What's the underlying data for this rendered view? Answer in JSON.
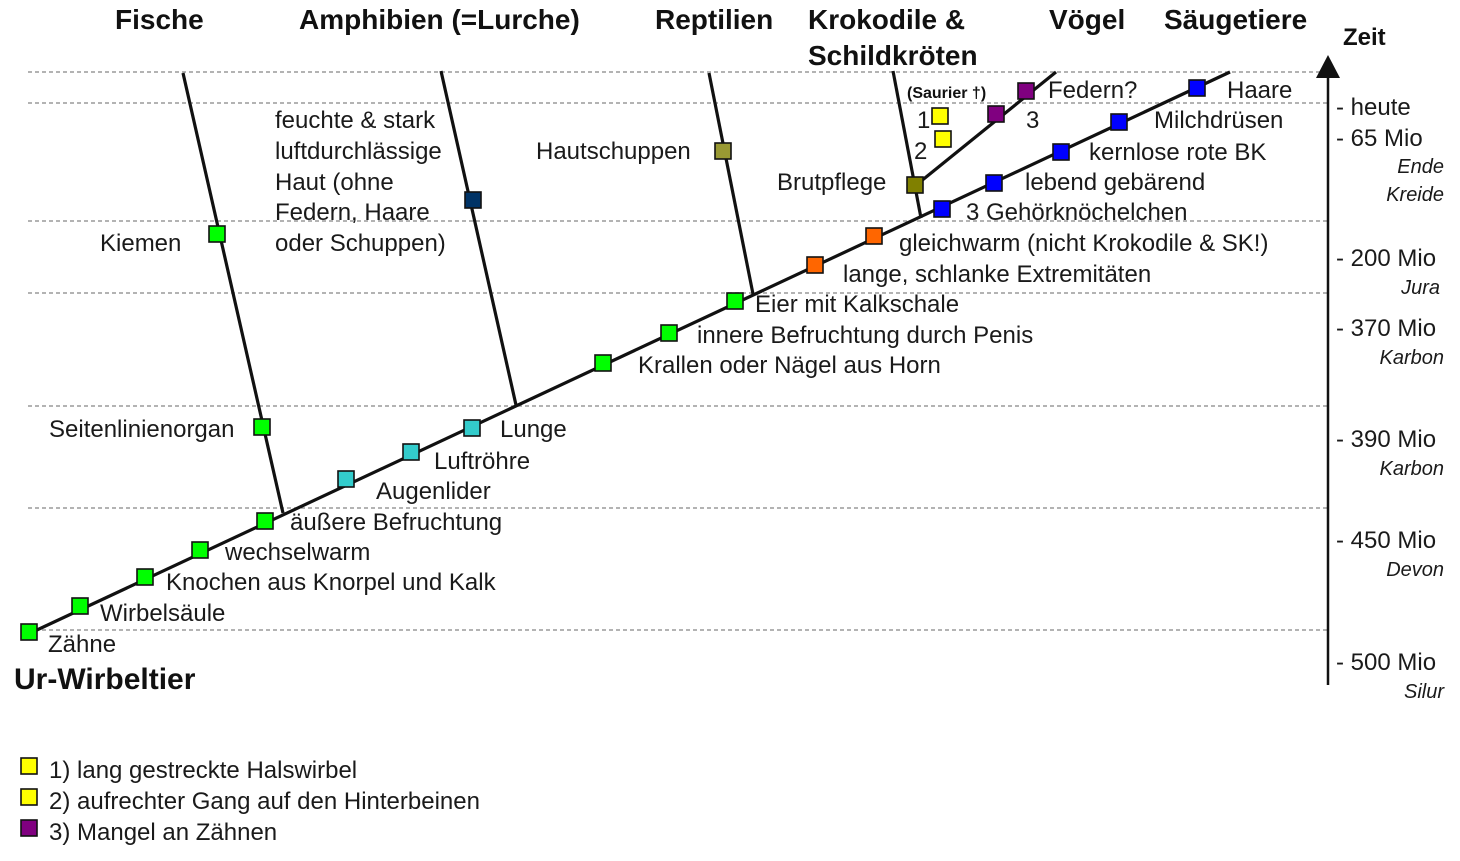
{
  "groups": {
    "fische": "Fische",
    "amphibien": "Amphibien (=Lurche)",
    "reptilien": "Reptilien",
    "krokodile_line1": "Krokodile &",
    "krokodile_line2": "Schildkröten",
    "voegel": "Vögel",
    "saeugetiere": "Säugetiere"
  },
  "root_label": "Ur-Wirbeltier",
  "time_axis": {
    "title": "Zeit",
    "entries": [
      {
        "label": "- heute",
        "period": ""
      },
      {
        "label": "- 65 Mio",
        "period": "Ende"
      },
      {
        "label": "",
        "period": "Kreide"
      },
      {
        "label": "- 200 Mio",
        "period": "Jura"
      },
      {
        "label": "- 370 Mio",
        "period": "Karbon"
      },
      {
        "label": "- 390 Mio",
        "period": "Karbon"
      },
      {
        "label": "- 450 Mio",
        "period": "Devon"
      },
      {
        "label": "- 500 Mio",
        "period": "Silur"
      }
    ]
  },
  "traits": {
    "zaehne": "Zähne",
    "wirbelsaeule": "Wirbelsäule",
    "knochen": "Knochen aus Knorpel und Kalk",
    "wechselwarm": "wechselwarm",
    "aeussere_befruchtung": "äußere Befruchtung",
    "augenlider": "Augenlider",
    "luftroehre": "Luftröhre",
    "lunge": "Lunge",
    "krallen": "Krallen oder Nägel aus Horn",
    "innere_befruchtung": "innere Befruchtung durch Penis",
    "eier": "Eier mit Kalkschale",
    "extremitaeten": "lange, schlanke Extremitäten",
    "gleichwarm": "gleichwarm (nicht Krokodile & SK!)",
    "gehoerknoechelchen": "3 Gehörknöchelchen",
    "lebend": "lebend gebärend",
    "kernlose_bk": "kernlose rote BK",
    "milchdruesen": "Milchdrüsen",
    "haare": "Haare",
    "seitenlinienorgan": "Seitenlinienorgan",
    "kiemen": "Kiemen",
    "haut_l1": "feuchte & stark",
    "haut_l2": "luftdurchlässige",
    "haut_l3": "Haut (ohne",
    "haut_l4": "Federn, Haare",
    "haut_l5": "oder Schuppen)",
    "hautschuppen": "Hautschuppen",
    "brutpflege": "Brutpflege",
    "saurier": "(Saurier †)",
    "num1": "1",
    "num2": "2",
    "num3": "3",
    "federn": "Federn?"
  },
  "legend": [
    {
      "text": "1) lang gestreckte Halswirbel",
      "color": "#ffff00"
    },
    {
      "text": "2) aufrechter Gang auf den Hinterbeinen",
      "color": "#ffff00"
    },
    {
      "text": "3) Mangel an Zähnen",
      "color": "#800080"
    }
  ],
  "colors": {
    "green": "#00ff00",
    "cyan": "#33cccc",
    "orange": "#ff6600",
    "blue": "#0000ff",
    "yellow": "#ffff00",
    "purple": "#800080",
    "olive": "#999933",
    "dark_olive": "#808000",
    "navy": "#003366"
  }
}
